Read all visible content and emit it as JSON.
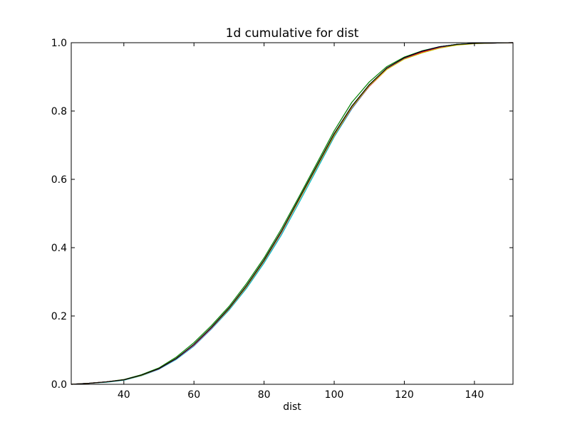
{
  "chart_data": {
    "type": "line",
    "title": "1d cumulative for dist",
    "xlabel": "dist",
    "ylabel": "",
    "xlim": [
      25,
      151
    ],
    "ylim": [
      0.0,
      1.0
    ],
    "grid": false,
    "x_ticks": [
      40,
      60,
      80,
      100,
      120,
      140
    ],
    "x_tick_labels": [
      "40",
      "60",
      "80",
      "100",
      "120",
      "140"
    ],
    "y_ticks": [
      0.0,
      0.2,
      0.4,
      0.6,
      0.8,
      1.0
    ],
    "y_tick_labels": [
      "0.0",
      "0.2",
      "0.4",
      "0.6",
      "0.8",
      "1.0"
    ],
    "x": [
      25,
      30,
      35,
      40,
      45,
      50,
      55,
      60,
      65,
      70,
      75,
      80,
      85,
      90,
      95,
      100,
      105,
      110,
      115,
      120,
      125,
      130,
      135,
      140,
      145,
      151
    ],
    "series": [
      {
        "color": "#0000ff",
        "values": [
          0.0,
          0.003,
          0.007,
          0.013,
          0.026,
          0.045,
          0.075,
          0.115,
          0.165,
          0.22,
          0.285,
          0.36,
          0.445,
          0.54,
          0.635,
          0.73,
          0.81,
          0.875,
          0.925,
          0.955,
          0.975,
          0.988,
          0.995,
          0.998,
          0.999,
          1.0
        ]
      },
      {
        "color": "#008000",
        "values": [
          0.0,
          0.003,
          0.007,
          0.014,
          0.028,
          0.048,
          0.08,
          0.122,
          0.172,
          0.228,
          0.295,
          0.37,
          0.456,
          0.55,
          0.646,
          0.742,
          0.825,
          0.885,
          0.93,
          0.958,
          0.976,
          0.988,
          0.995,
          0.998,
          0.999,
          1.0
        ]
      },
      {
        "color": "#ff0000",
        "values": [
          0.0,
          0.003,
          0.007,
          0.013,
          0.026,
          0.046,
          0.076,
          0.116,
          0.166,
          0.222,
          0.287,
          0.362,
          0.447,
          0.541,
          0.636,
          0.729,
          0.808,
          0.872,
          0.922,
          0.953,
          0.972,
          0.986,
          0.994,
          0.998,
          0.999,
          1.0
        ]
      },
      {
        "color": "#00bfbf",
        "values": [
          0.0,
          0.003,
          0.006,
          0.012,
          0.025,
          0.044,
          0.073,
          0.112,
          0.162,
          0.217,
          0.281,
          0.355,
          0.438,
          0.532,
          0.628,
          0.724,
          0.806,
          0.873,
          0.924,
          0.955,
          0.975,
          0.988,
          0.995,
          0.998,
          0.999,
          1.0
        ]
      },
      {
        "color": "#bf00bf",
        "values": [
          0.0,
          0.003,
          0.007,
          0.013,
          0.026,
          0.045,
          0.075,
          0.114,
          0.164,
          0.22,
          0.285,
          0.36,
          0.444,
          0.539,
          0.634,
          0.728,
          0.808,
          0.873,
          0.924,
          0.955,
          0.974,
          0.987,
          0.994,
          0.998,
          0.999,
          1.0
        ]
      },
      {
        "color": "#bfbf00",
        "values": [
          0.0,
          0.003,
          0.007,
          0.013,
          0.026,
          0.046,
          0.076,
          0.116,
          0.166,
          0.221,
          0.286,
          0.361,
          0.446,
          0.54,
          0.635,
          0.729,
          0.81,
          0.874,
          0.922,
          0.952,
          0.97,
          0.984,
          0.993,
          0.997,
          0.999,
          1.0
        ]
      },
      {
        "color": "#000000",
        "values": [
          0.0,
          0.003,
          0.007,
          0.013,
          0.027,
          0.046,
          0.076,
          0.117,
          0.167,
          0.223,
          0.289,
          0.364,
          0.449,
          0.544,
          0.639,
          0.734,
          0.814,
          0.877,
          0.926,
          0.956,
          0.975,
          0.988,
          0.995,
          0.998,
          0.999,
          1.0
        ]
      }
    ]
  }
}
